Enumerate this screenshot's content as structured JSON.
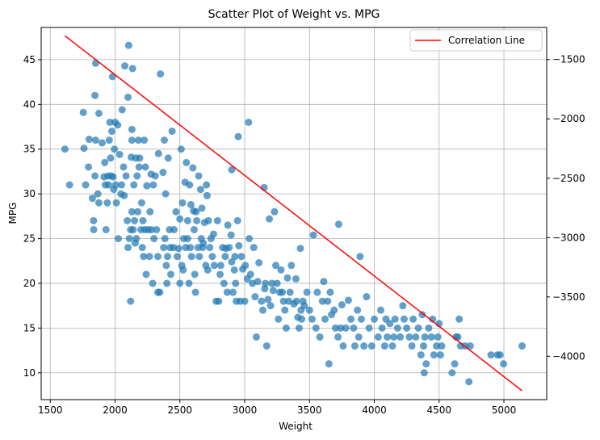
{
  "chart_data": {
    "type": "scatter",
    "title": "Scatter Plot of Weight vs. MPG",
    "xlabel": "Weight",
    "ylabel": "MPG",
    "xlim": [
      1430,
      5330
    ],
    "ylim": [
      7.0,
      48.6
    ],
    "y2lim": [
      -4365,
      -1230
    ],
    "x_ticks": [
      1500,
      2000,
      2500,
      3000,
      3500,
      4000,
      4500,
      5000
    ],
    "y_ticks": [
      10,
      15,
      20,
      25,
      30,
      35,
      40,
      45
    ],
    "y2_ticks": [
      -4000,
      -3500,
      -3000,
      -2500,
      -2000,
      -1500
    ],
    "grid": true,
    "legend_position": "top-right",
    "colors": {
      "points": "#1f77b4",
      "line": "#ff0000",
      "grid": "#b0b0b0"
    },
    "series": [
      {
        "kind": "points",
        "axis": "left",
        "points": [
          [
            1613,
            35.0
          ],
          [
            1649,
            31.0
          ],
          [
            1755,
            39.1
          ],
          [
            1760,
            35.1
          ],
          [
            1773,
            31.0
          ],
          [
            1795,
            33.0
          ],
          [
            1800,
            36.1
          ],
          [
            1825,
            29.5
          ],
          [
            1834,
            27.0
          ],
          [
            1835,
            26.0
          ],
          [
            1845,
            32.0
          ],
          [
            1850,
            36.0
          ],
          [
            1850,
            44.6
          ],
          [
            1845,
            41.0
          ],
          [
            1867,
            30.0
          ],
          [
            1875,
            29.0
          ],
          [
            1875,
            39.0
          ],
          [
            1900,
            35.7
          ],
          [
            1915,
            31.9
          ],
          [
            1920,
            33.5
          ],
          [
            1925,
            31.0
          ],
          [
            1930,
            26.0
          ],
          [
            1940,
            29.0
          ],
          [
            1945,
            32.0
          ],
          [
            1950,
            31.0
          ],
          [
            1955,
            36.0
          ],
          [
            1960,
            38.0
          ],
          [
            1965,
            34.0
          ],
          [
            1970,
            32.0
          ],
          [
            1975,
            37.0
          ],
          [
            1980,
            43.1
          ],
          [
            1985,
            31.9
          ],
          [
            1990,
            30.5
          ],
          [
            1995,
            35.0
          ],
          [
            2000,
            38.0
          ],
          [
            2005,
            31.0
          ],
          [
            2010,
            29.0
          ],
          [
            2020,
            37.7
          ],
          [
            2025,
            25.0
          ],
          [
            2035,
            34.4
          ],
          [
            2045,
            30.0
          ],
          [
            2050,
            31.0
          ],
          [
            2055,
            39.4
          ],
          [
            2065,
            33.0
          ],
          [
            2070,
            29.8
          ],
          [
            2075,
            44.3
          ],
          [
            2085,
            32.0
          ],
          [
            2094,
            27.0
          ],
          [
            2100,
            40.8
          ],
          [
            2100,
            24.0
          ],
          [
            2105,
            46.6
          ],
          [
            2110,
            25.0
          ],
          [
            2120,
            26.0
          ],
          [
            2120,
            18.0
          ],
          [
            2125,
            34.1
          ],
          [
            2130,
            28.0
          ],
          [
            2130,
            37.2
          ],
          [
            2130,
            36.0
          ],
          [
            2135,
            44.0
          ],
          [
            2140,
            26.0
          ],
          [
            2145,
            31.0
          ],
          [
            2150,
            27.0
          ],
          [
            2155,
            24.5
          ],
          [
            2160,
            34.0
          ],
          [
            2164,
            25.0
          ],
          [
            2170,
            32.0
          ],
          [
            2175,
            28.0
          ],
          [
            2180,
            36.0
          ],
          [
            2185,
            33.0
          ],
          [
            2190,
            34.0
          ],
          [
            2200,
            26.0
          ],
          [
            2205,
            29.0
          ],
          [
            2210,
            24.0
          ],
          [
            2215,
            27.0
          ],
          [
            2220,
            23.0
          ],
          [
            2225,
            36.0
          ],
          [
            2230,
            26.0
          ],
          [
            2234,
            33.0
          ],
          [
            2240,
            21.0
          ],
          [
            2245,
            30.9
          ],
          [
            2255,
            26.0
          ],
          [
            2265,
            23.0
          ],
          [
            2270,
            28.0
          ],
          [
            2278,
            32.2
          ],
          [
            2280,
            26.0
          ],
          [
            2290,
            20.0
          ],
          [
            2295,
            31.0
          ],
          [
            2300,
            25.0
          ],
          [
            2310,
            32.0
          ],
          [
            2320,
            26.0
          ],
          [
            2330,
            19.0
          ],
          [
            2330,
            23.0
          ],
          [
            2335,
            34.5
          ],
          [
            2345,
            19.0
          ],
          [
            2350,
            43.4
          ],
          [
            2370,
            32.4
          ],
          [
            2375,
            24.0
          ],
          [
            2380,
            36.0
          ],
          [
            2385,
            25.0
          ],
          [
            2390,
            30.0
          ],
          [
            2395,
            22.0
          ],
          [
            2400,
            20.0
          ],
          [
            2405,
            23.0
          ],
          [
            2410,
            34.0
          ],
          [
            2420,
            26.0
          ],
          [
            2425,
            24.0
          ],
          [
            2430,
            21.0
          ],
          [
            2440,
            37.0
          ],
          [
            2450,
            24.0
          ],
          [
            2455,
            26.0
          ],
          [
            2470,
            28.0
          ],
          [
            2480,
            23.0
          ],
          [
            2490,
            23.9
          ],
          [
            2500,
            27.2
          ],
          [
            2500,
            20.0
          ],
          [
            2510,
            35.0
          ],
          [
            2515,
            22.0
          ],
          [
            2520,
            29.0
          ],
          [
            2525,
            21.5
          ],
          [
            2530,
            25.0
          ],
          [
            2540,
            31.3
          ],
          [
            2545,
            24.0
          ],
          [
            2550,
            33.5
          ],
          [
            2560,
            27.0
          ],
          [
            2560,
            25.0
          ],
          [
            2570,
            20.0
          ],
          [
            2575,
            31.0
          ],
          [
            2580,
            24.0
          ],
          [
            2585,
            28.8
          ],
          [
            2590,
            23.0
          ],
          [
            2600,
            32.9
          ],
          [
            2605,
            28.1
          ],
          [
            2610,
            26.0
          ],
          [
            2615,
            21.0
          ],
          [
            2620,
            19.0
          ],
          [
            2625,
            28.0
          ],
          [
            2630,
            27.0
          ],
          [
            2640,
            24.0
          ],
          [
            2645,
            32.0
          ],
          [
            2650,
            23.0
          ],
          [
            2660,
            30.5
          ],
          [
            2665,
            25.0
          ],
          [
            2670,
            28.4
          ],
          [
            2675,
            24.0
          ],
          [
            2680,
            24.5
          ],
          [
            2690,
            26.8
          ],
          [
            2700,
            22.0
          ],
          [
            2705,
            31.0
          ],
          [
            2710,
            29.8
          ],
          [
            2715,
            21.5
          ],
          [
            2720,
            27.0
          ],
          [
            2730,
            24.0
          ],
          [
            2740,
            25.0
          ],
          [
            2750,
            23.0
          ],
          [
            2760,
            25.5
          ],
          [
            2765,
            22.0
          ],
          [
            2780,
            18.0
          ],
          [
            2790,
            27.0
          ],
          [
            2800,
            18.0
          ],
          [
            2810,
            21.0
          ],
          [
            2815,
            22.0
          ],
          [
            2830,
            24.0
          ],
          [
            2840,
            20.0
          ],
          [
            2850,
            23.0
          ],
          [
            2855,
            23.9
          ],
          [
            2865,
            19.0
          ],
          [
            2870,
            26.5
          ],
          [
            2880,
            24.0
          ],
          [
            2895,
            25.4
          ],
          [
            2900,
            22.4
          ],
          [
            2900,
            32.7
          ],
          [
            2910,
            19.0
          ],
          [
            2920,
            21.5
          ],
          [
            2925,
            23.0
          ],
          [
            2930,
            20.0
          ],
          [
            2935,
            18.0
          ],
          [
            2945,
            27.0
          ],
          [
            2950,
            36.4
          ],
          [
            2955,
            24.2
          ],
          [
            2965,
            18.0
          ],
          [
            2975,
            23.0
          ],
          [
            2985,
            21.6
          ],
          [
            3000,
            18.0
          ],
          [
            3005,
            22.0
          ],
          [
            3020,
            20.5
          ],
          [
            3030,
            38.0
          ],
          [
            3035,
            25.0
          ],
          [
            3045,
            21.0
          ],
          [
            3060,
            20.0
          ],
          [
            3070,
            24.0
          ],
          [
            3080,
            18.5
          ],
          [
            3090,
            14.0
          ],
          [
            3100,
            20.2
          ],
          [
            3110,
            22.3
          ],
          [
            3130,
            18.0
          ],
          [
            3140,
            17.0
          ],
          [
            3150,
            30.7
          ],
          [
            3155,
            19.4
          ],
          [
            3160,
            20.0
          ],
          [
            3170,
            13.0
          ],
          [
            3180,
            18.2
          ],
          [
            3190,
            27.2
          ],
          [
            3200,
            17.5
          ],
          [
            3210,
            20.0
          ],
          [
            3220,
            19.2
          ],
          [
            3230,
            28.0
          ],
          [
            3240,
            22.0
          ],
          [
            3250,
            20.0
          ],
          [
            3260,
            16.0
          ],
          [
            3270,
            19.0
          ],
          [
            3280,
            21.5
          ],
          [
            3290,
            19.0
          ],
          [
            3300,
            18.0
          ],
          [
            3310,
            17.0
          ],
          [
            3320,
            15.0
          ],
          [
            3330,
            20.6
          ],
          [
            3340,
            18.0
          ],
          [
            3350,
            19.0
          ],
          [
            3360,
            22.0
          ],
          [
            3380,
            17.7
          ],
          [
            3395,
            20.5
          ],
          [
            3400,
            18.0
          ],
          [
            3410,
            16.2
          ],
          [
            3420,
            15.0
          ],
          [
            3430,
            23.9
          ],
          [
            3435,
            17.0
          ],
          [
            3440,
            16.0
          ],
          [
            3450,
            18.0
          ],
          [
            3460,
            17.5
          ],
          [
            3480,
            19.0
          ],
          [
            3500,
            17.0
          ],
          [
            3520,
            16.0
          ],
          [
            3530,
            25.4
          ],
          [
            3550,
            15.0
          ],
          [
            3560,
            19.0
          ],
          [
            3580,
            14.0
          ],
          [
            3600,
            18.0
          ],
          [
            3610,
            20.2
          ],
          [
            3620,
            16.0
          ],
          [
            3640,
            18.0
          ],
          [
            3650,
            11.0
          ],
          [
            3660,
            19.0
          ],
          [
            3670,
            16.5
          ],
          [
            3690,
            17.0
          ],
          [
            3700,
            15.0
          ],
          [
            3720,
            14.0
          ],
          [
            3725,
            26.6
          ],
          [
            3740,
            15.0
          ],
          [
            3750,
            17.6
          ],
          [
            3760,
            13.0
          ],
          [
            3780,
            15.0
          ],
          [
            3800,
            18.1
          ],
          [
            3820,
            16.0
          ],
          [
            3840,
            15.0
          ],
          [
            3850,
            13.0
          ],
          [
            3870,
            17.0
          ],
          [
            3880,
            14.0
          ],
          [
            3890,
            23.0
          ],
          [
            3900,
            16.0
          ],
          [
            3920,
            13.0
          ],
          [
            3940,
            18.5
          ],
          [
            3960,
            15.0
          ],
          [
            3980,
            13.0
          ],
          [
            4000,
            16.0
          ],
          [
            4030,
            14.0
          ],
          [
            4050,
            17.0
          ],
          [
            4060,
            15.0
          ],
          [
            4080,
            13.0
          ],
          [
            4090,
            16.0
          ],
          [
            4100,
            14.0
          ],
          [
            4120,
            15.5
          ],
          [
            4140,
            13.0
          ],
          [
            4150,
            14.0
          ],
          [
            4160,
            16.0
          ],
          [
            4180,
            15.0
          ],
          [
            4200,
            14.0
          ],
          [
            4220,
            17.5
          ],
          [
            4230,
            16.0
          ],
          [
            4250,
            15.0
          ],
          [
            4270,
            14.0
          ],
          [
            4290,
            13.0
          ],
          [
            4300,
            16.0
          ],
          [
            4320,
            14.0
          ],
          [
            4340,
            15.0
          ],
          [
            4360,
            12.0
          ],
          [
            4370,
            16.5
          ],
          [
            4380,
            13.0
          ],
          [
            4385,
            10.0
          ],
          [
            4390,
            14.0
          ],
          [
            4400,
            11.0
          ],
          [
            4420,
            15.0
          ],
          [
            4440,
            14.0
          ],
          [
            4450,
            16.0
          ],
          [
            4460,
            12.0
          ],
          [
            4480,
            13.0
          ],
          [
            4490,
            14.0
          ],
          [
            4500,
            15.5
          ],
          [
            4510,
            12.0
          ],
          [
            4520,
            13.0
          ],
          [
            4600,
            10.0
          ],
          [
            4620,
            11.0
          ],
          [
            4630,
            14.0
          ],
          [
            4645,
            14.0
          ],
          [
            4655,
            16.0
          ],
          [
            4665,
            13.0
          ],
          [
            4700,
            13.0
          ],
          [
            4730,
            9.0
          ],
          [
            4740,
            13.0
          ],
          [
            4900,
            12.0
          ],
          [
            4950,
            12.0
          ],
          [
            4970,
            12.0
          ],
          [
            4997,
            11.0
          ],
          [
            5140,
            13.0
          ]
        ]
      },
      {
        "kind": "line",
        "axis": "right",
        "name": "Correlation Line",
        "x": [
          1613,
          5140
        ],
        "y": [
          -1300,
          -4290
        ]
      }
    ]
  }
}
